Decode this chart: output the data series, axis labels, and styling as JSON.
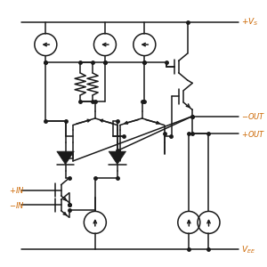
{
  "bg_color": "#ffffff",
  "line_color": "#1a1a1a",
  "label_color": "#cc6600",
  "lw": 1.1,
  "dot_r": 2.5,
  "fig_w": 3.0,
  "fig_h": 3.0,
  "dpi": 100,
  "vs_label": "+V_S",
  "vee_label": "V_{EE}",
  "out_neg_label": "-OUT",
  "out_pos_label": "+OUT",
  "in_pos_label": "+IN",
  "in_neg_label": "-IN"
}
